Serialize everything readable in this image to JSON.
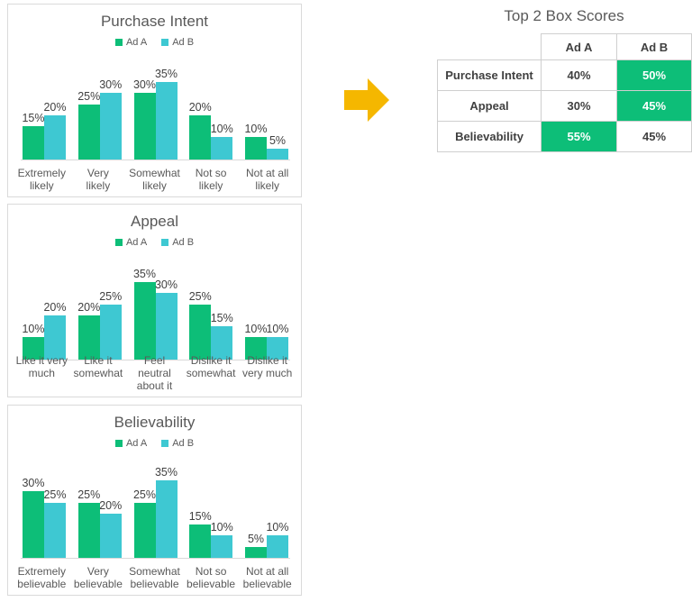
{
  "colors": {
    "ad_a": "#0DBE78",
    "ad_b": "#3EC8D2",
    "highlight": "#0DBE78",
    "arrow": "#F5B700",
    "title_text": "#595959",
    "label_text": "#404040",
    "panel_border": "#DADADA"
  },
  "chart_data": [
    {
      "type": "bar",
      "title": "Purchase Intent",
      "categories": [
        "Extremely likely",
        "Very likely",
        "Somewhat likely",
        "Not so likely",
        "Not at all likely"
      ],
      "categories_wrapped": [
        [
          "Extremely",
          "likely"
        ],
        [
          "Very",
          "likely"
        ],
        [
          "Somewhat",
          "likely"
        ],
        [
          "Not so",
          "likely"
        ],
        [
          "Not at all",
          "likely"
        ]
      ],
      "series": [
        {
          "name": "Ad A",
          "values": [
            15,
            25,
            30,
            20,
            10
          ]
        },
        {
          "name": "Ad B",
          "values": [
            20,
            30,
            35,
            10,
            5
          ]
        }
      ],
      "value_suffix": "%",
      "ylim": [
        0,
        40
      ],
      "legend_position": "top",
      "grid": false
    },
    {
      "type": "bar",
      "title": "Appeal",
      "categories": [
        "Like it very much",
        "Like it somewhat",
        "Feel neutral about it",
        "Dislike it somewhat",
        "Dislike it very much"
      ],
      "categories_wrapped": [
        [
          "Like it very",
          "much"
        ],
        [
          "Like it",
          "somewhat"
        ],
        [
          "Feel neutral",
          "about it"
        ],
        [
          "Dislike it",
          "somewhat"
        ],
        [
          "Dislike it",
          "very much"
        ]
      ],
      "series": [
        {
          "name": "Ad A",
          "values": [
            10,
            20,
            35,
            25,
            10
          ]
        },
        {
          "name": "Ad B",
          "values": [
            20,
            25,
            30,
            15,
            10
          ]
        }
      ],
      "value_suffix": "%",
      "ylim": [
        0,
        40
      ],
      "legend_position": "top",
      "grid": false
    },
    {
      "type": "bar",
      "title": "Believability",
      "categories": [
        "Extremely believable",
        "Very believable",
        "Somewhat believable",
        "Not so believable",
        "Not at all believable"
      ],
      "categories_wrapped": [
        [
          "Extremely",
          "believable"
        ],
        [
          "Very",
          "believable"
        ],
        [
          "Somewhat",
          "believable"
        ],
        [
          "Not so",
          "believable"
        ],
        [
          "Not at all",
          "believable"
        ]
      ],
      "series": [
        {
          "name": "Ad A",
          "values": [
            30,
            25,
            25,
            15,
            5
          ]
        },
        {
          "name": "Ad B",
          "values": [
            25,
            20,
            35,
            10,
            10
          ]
        }
      ],
      "value_suffix": "%",
      "ylim": [
        0,
        40
      ],
      "legend_position": "top",
      "grid": false
    }
  ],
  "table": {
    "title": "Top 2 Box Scores",
    "columns": [
      "Ad A",
      "Ad B"
    ],
    "rows": [
      {
        "label": "Purchase Intent",
        "ad_a": "40%",
        "ad_b": "50%",
        "highlight": "ad_b"
      },
      {
        "label": "Appeal",
        "ad_a": "30%",
        "ad_b": "45%",
        "highlight": "ad_b"
      },
      {
        "label": "Believability",
        "ad_a": "55%",
        "ad_b": "45%",
        "highlight": "ad_a"
      }
    ]
  }
}
